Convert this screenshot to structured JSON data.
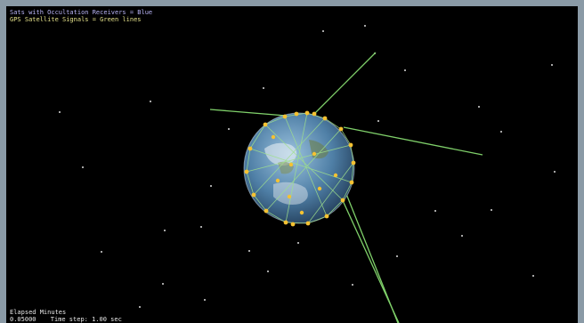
{
  "legend": {
    "occultation": "Sats with Occultation Receivers = Blue",
    "gps": "GPS Satellite Signals = Green lines"
  },
  "hud": {
    "elapsed_label": "Elapsed Minutes",
    "elapsed_value": "0.05000",
    "time_step": "Time step: 1.00 sec"
  },
  "colors": {
    "frame": "#8a9aa6",
    "space": "#000000",
    "signal": "#7fd06a",
    "satellite": "#f5c232",
    "occultation_text": "#b7b3f5",
    "gps_text": "#e3e08a"
  }
}
